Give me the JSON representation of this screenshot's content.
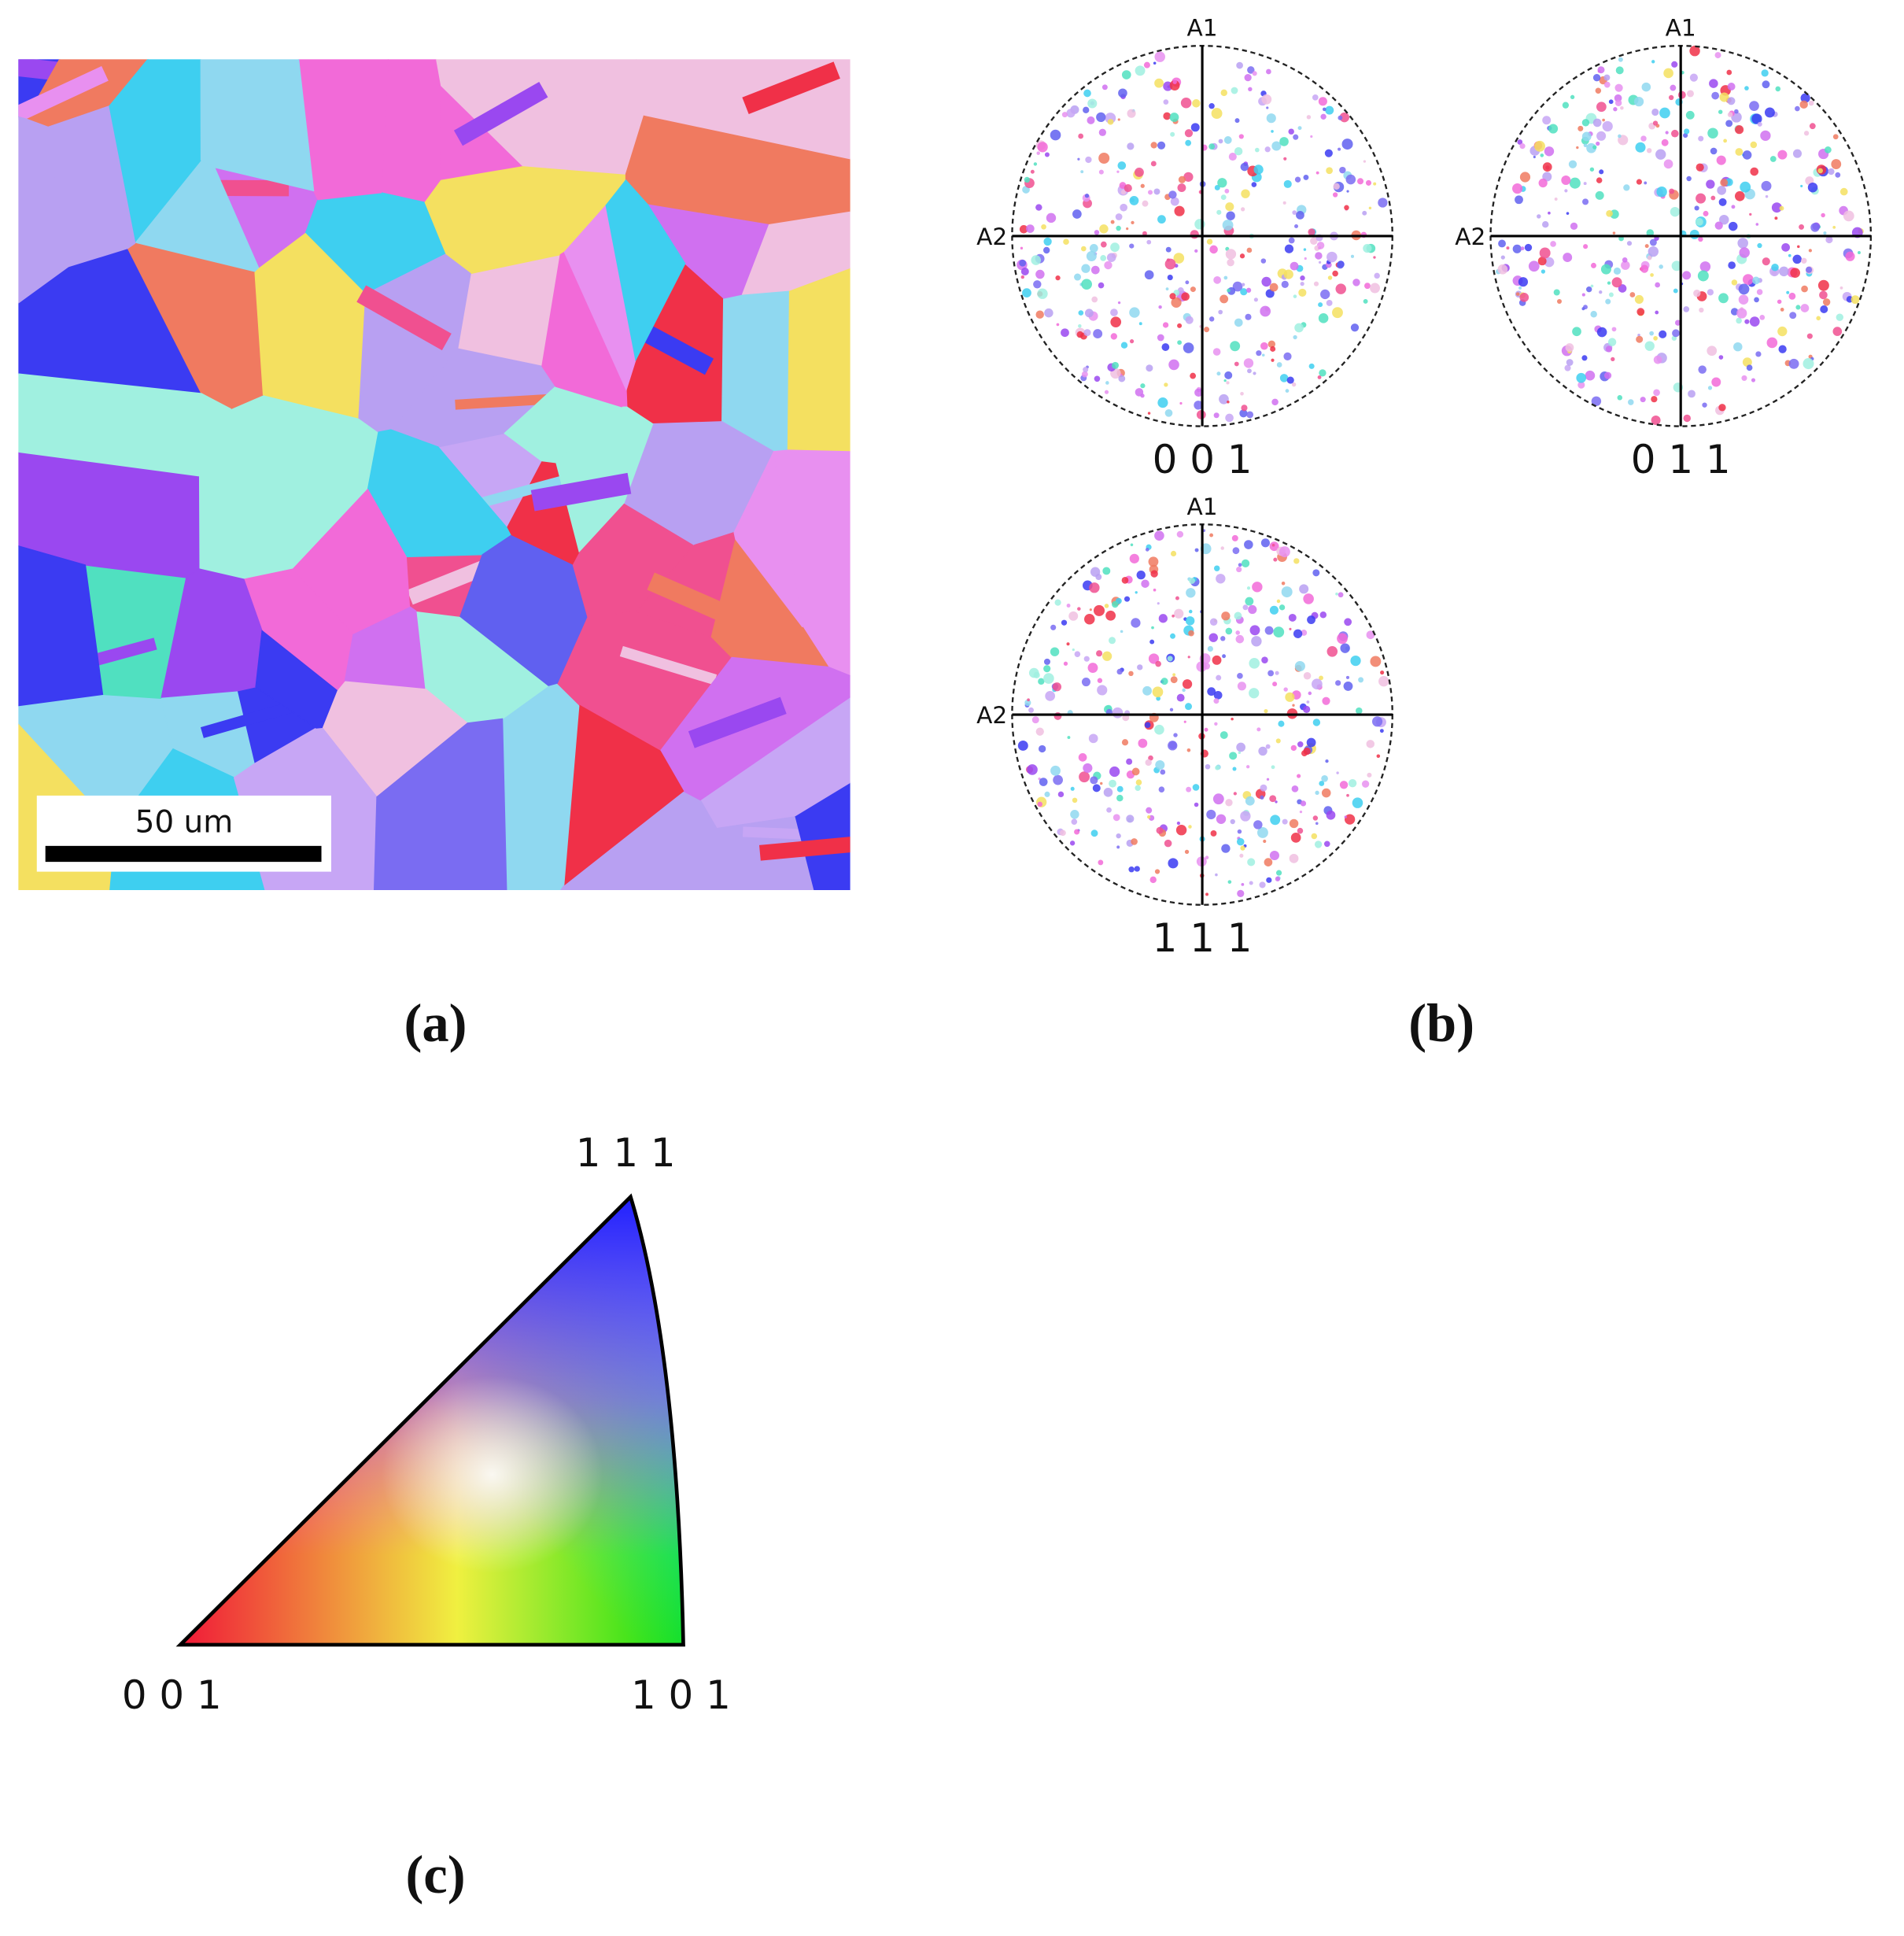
{
  "panel_a": {
    "scale_bar": "50 um",
    "label": "(a)"
  },
  "panel_b": {
    "label": "(b)",
    "pole_figures": [
      {
        "axis_top": "A1",
        "axis_left": "A2",
        "label": "0 0 1"
      },
      {
        "axis_top": "A1",
        "axis_left": "A2",
        "label": "0 1 1"
      },
      {
        "axis_top": "A1",
        "axis_left": "A2",
        "label": "1 1 1"
      }
    ]
  },
  "panel_c": {
    "label": "(c)",
    "corner_top": "1 1 1",
    "corner_left": "0 0 1",
    "corner_right": "1 0 1"
  }
}
